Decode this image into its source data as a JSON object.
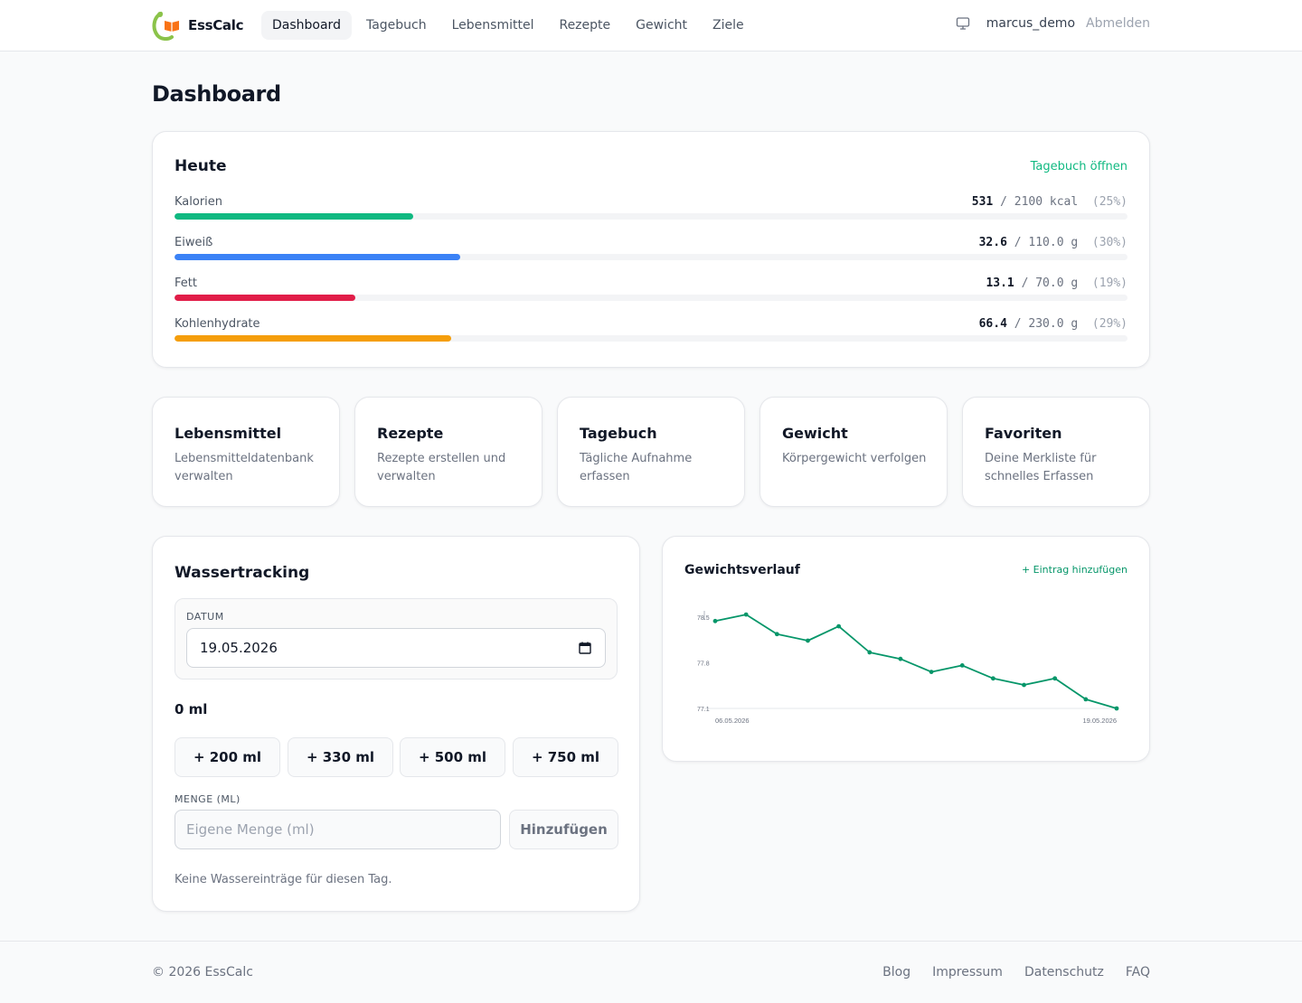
{
  "brand": {
    "name": "EssCalc"
  },
  "nav": {
    "items": [
      {
        "label": "Dashboard",
        "active": true
      },
      {
        "label": "Tagebuch"
      },
      {
        "label": "Lebensmittel"
      },
      {
        "label": "Rezepte"
      },
      {
        "label": "Gewicht"
      },
      {
        "label": "Ziele"
      }
    ]
  },
  "user": {
    "name": "marcus_demo",
    "logout_label": "Abmelden",
    "icon": "monitor-icon"
  },
  "page": {
    "title": "Dashboard"
  },
  "today": {
    "title": "Heute",
    "link_label": "Tagebuch öffnen",
    "macros": [
      {
        "label": "Kalorien",
        "current": "531",
        "goal": "2100",
        "unit": "kcal",
        "percent": "25",
        "color": "#10b981",
        "fill": 0.25
      },
      {
        "label": "Eiweiß",
        "current": "32.6",
        "goal": "110.0",
        "unit": "g",
        "percent": "30",
        "color": "#3b82f6",
        "fill": 0.3
      },
      {
        "label": "Fett",
        "current": "13.1",
        "goal": "70.0",
        "unit": "g",
        "percent": "19",
        "color": "#e11d48",
        "fill": 0.19
      },
      {
        "label": "Kohlenhydrate",
        "current": "66.4",
        "goal": "230.0",
        "unit": "g",
        "percent": "29",
        "color": "#f59e0b",
        "fill": 0.29
      }
    ]
  },
  "tiles": [
    {
      "title": "Lebensmittel",
      "desc": "Lebensmitteldatenbank verwalten"
    },
    {
      "title": "Rezepte",
      "desc": "Rezepte erstellen und verwalten"
    },
    {
      "title": "Tagebuch",
      "desc": "Tägliche Aufnahme erfassen"
    },
    {
      "title": "Gewicht",
      "desc": "Körpergewicht verfolgen"
    },
    {
      "title": "Favoriten",
      "desc": "Deine Merkliste für schnelles Erfassen"
    }
  ],
  "water": {
    "title": "Wassertracking",
    "date_label": "Datum",
    "date_value": "19.05.2026",
    "amount": "0 ml",
    "quick_buttons": [
      "+ 200 ml",
      "+ 330 ml",
      "+ 500 ml",
      "+ 750 ml"
    ],
    "menge_label": "Menge (ml)",
    "menge_placeholder": "Eigene Menge (ml)",
    "add_label": "Hinzufügen",
    "empty_note": "Keine Wassereinträge für diesen Tag."
  },
  "weight": {
    "title": "Gewichtsverlauf",
    "link_label": "+ Eintrag hinzufügen"
  },
  "chart_data": {
    "type": "line",
    "title": "",
    "x_start_label": "06.05.2026",
    "x_end_label": "19.05.2026",
    "y_tick_labels": [
      "78.5",
      "77.8",
      "77.1"
    ],
    "ylim": [
      77.1,
      78.5
    ],
    "color": "#059669",
    "series": [
      {
        "values": [
          78.44,
          78.54,
          78.24,
          78.14,
          78.36,
          77.96,
          77.86,
          77.66,
          77.76,
          77.56,
          77.46,
          77.56,
          77.24,
          77.1
        ]
      }
    ]
  },
  "footer": {
    "copyright": "© 2026 EssCalc",
    "links": [
      "Blog",
      "Impressum",
      "Datenschutz",
      "FAQ"
    ]
  }
}
